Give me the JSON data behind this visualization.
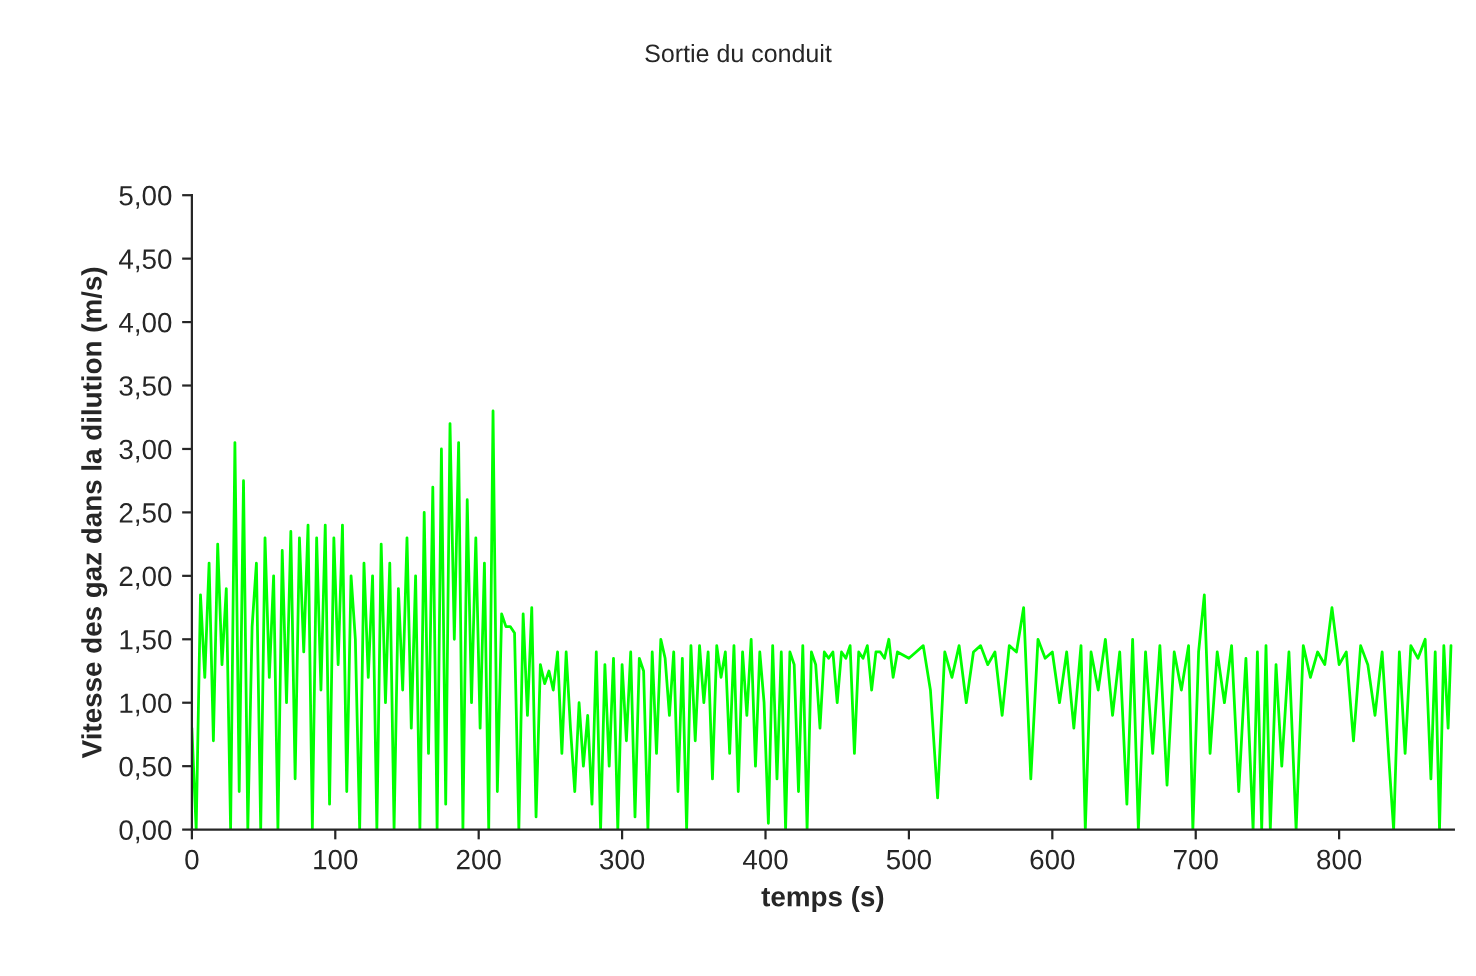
{
  "chart_data": {
    "type": "line",
    "title": "Sortie du conduit",
    "xlabel": "temps (s)",
    "ylabel": "Vitesse des gaz dans la dilution (m/s)",
    "x": [
      0,
      3,
      6,
      9,
      12,
      15,
      18,
      21,
      24,
      27,
      30,
      33,
      36,
      39,
      42,
      45,
      48,
      51,
      54,
      57,
      60,
      63,
      66,
      69,
      72,
      75,
      78,
      81,
      84,
      87,
      90,
      93,
      96,
      99,
      102,
      105,
      108,
      111,
      114,
      117,
      120,
      123,
      126,
      129,
      132,
      135,
      138,
      141,
      144,
      147,
      150,
      153,
      156,
      159,
      162,
      165,
      168,
      171,
      174,
      177,
      180,
      183,
      186,
      189,
      192,
      195,
      198,
      201,
      204,
      207,
      210,
      213,
      216,
      219,
      222,
      225,
      228,
      231,
      234,
      237,
      240,
      243,
      246,
      249,
      252,
      255,
      258,
      261,
      264,
      267,
      270,
      273,
      276,
      279,
      282,
      285,
      288,
      291,
      294,
      297,
      300,
      303,
      306,
      309,
      312,
      315,
      318,
      321,
      324,
      327,
      330,
      333,
      336,
      339,
      342,
      345,
      348,
      351,
      354,
      357,
      360,
      363,
      366,
      369,
      372,
      375,
      378,
      381,
      384,
      387,
      390,
      393,
      396,
      399,
      402,
      405,
      408,
      411,
      414,
      417,
      420,
      423,
      426,
      429,
      432,
      435,
      438,
      441,
      444,
      447,
      450,
      453,
      456,
      459,
      462,
      465,
      468,
      471,
      474,
      477,
      480,
      483,
      486,
      489,
      492,
      500,
      505,
      510,
      515,
      520,
      525,
      530,
      535,
      540,
      545,
      550,
      555,
      560,
      565,
      570,
      575,
      580,
      585,
      590,
      595,
      600,
      605,
      610,
      615,
      620,
      623,
      627,
      632,
      637,
      642,
      647,
      652,
      656,
      660,
      665,
      670,
      675,
      680,
      685,
      690,
      695,
      698,
      702,
      706,
      710,
      715,
      720,
      725,
      730,
      735,
      740,
      743,
      746,
      749,
      752,
      756,
      760,
      765,
      770,
      775,
      780,
      785,
      790,
      795,
      800,
      805,
      810,
      815,
      820,
      825,
      830,
      835,
      838,
      842,
      846,
      850,
      855,
      860,
      864,
      867,
      870,
      873,
      876,
      878
    ],
    "series": [
      {
        "color": "#00ff00",
        "values": [
          0.8,
          0,
          1.85,
          1.2,
          2.1,
          0.7,
          2.25,
          1.3,
          1.9,
          0,
          3.05,
          0.3,
          2.75,
          0,
          1.6,
          2.1,
          0,
          2.3,
          1.2,
          2.0,
          0,
          2.2,
          1.0,
          2.35,
          0.4,
          2.3,
          1.4,
          2.4,
          0,
          2.3,
          1.1,
          2.4,
          0.2,
          2.3,
          1.3,
          2.4,
          0.3,
          2.0,
          1.5,
          0,
          2.1,
          1.2,
          2.0,
          0,
          2.25,
          1.0,
          2.1,
          0,
          1.9,
          1.1,
          2.3,
          0.8,
          2.0,
          0,
          2.5,
          0.6,
          2.7,
          0,
          3.0,
          0.2,
          3.2,
          1.5,
          3.05,
          0,
          2.6,
          1.0,
          2.3,
          0.8,
          2.1,
          0,
          3.3,
          0.3,
          1.7,
          1.6,
          1.6,
          1.55,
          0,
          1.7,
          0.9,
          1.75,
          0.1,
          1.3,
          1.15,
          1.25,
          1.1,
          1.4,
          0.6,
          1.4,
          0.8,
          0.3,
          1.0,
          0.5,
          0.9,
          0.2,
          1.4,
          0,
          1.3,
          0.5,
          1.35,
          0,
          1.3,
          0.7,
          1.4,
          0.1,
          1.35,
          1.25,
          0,
          1.4,
          0.6,
          1.5,
          1.35,
          0.9,
          1.4,
          0.3,
          1.35,
          0,
          1.45,
          0.7,
          1.45,
          1.0,
          1.4,
          0.4,
          1.45,
          1.2,
          1.4,
          0.6,
          1.45,
          0.3,
          1.4,
          0.9,
          1.5,
          0.5,
          1.4,
          1.0,
          0.05,
          1.45,
          0.4,
          1.4,
          0,
          1.4,
          1.3,
          0.3,
          1.45,
          0,
          1.4,
          1.3,
          0.8,
          1.4,
          1.35,
          1.4,
          1.0,
          1.4,
          1.35,
          1.45,
          0.6,
          1.4,
          1.35,
          1.45,
          1.1,
          1.4,
          1.4,
          1.35,
          1.5,
          1.2,
          1.4,
          1.35,
          1.4,
          1.45,
          1.1,
          0.25,
          1.4,
          1.2,
          1.45,
          1.0,
          1.4,
          1.45,
          1.3,
          1.4,
          0.9,
          1.45,
          1.4,
          1.75,
          0.4,
          1.5,
          1.35,
          1.4,
          1.0,
          1.4,
          0.8,
          1.45,
          0,
          1.4,
          1.1,
          1.5,
          0.9,
          1.4,
          0.2,
          1.5,
          0,
          1.4,
          0.6,
          1.45,
          0.35,
          1.4,
          1.1,
          1.45,
          0,
          1.4,
          1.85,
          0.6,
          1.4,
          1.0,
          1.45,
          0.3,
          1.35,
          0,
          1.4,
          0,
          1.45,
          0,
          1.3,
          0.5,
          1.4,
          0,
          1.45,
          1.2,
          1.4,
          1.3,
          1.75,
          1.3,
          1.4,
          0.7,
          1.45,
          1.3,
          0.9,
          1.4,
          0.5,
          0,
          1.4,
          0.6,
          1.45,
          1.35,
          1.5,
          0.4,
          1.4,
          0,
          1.45,
          0.8,
          1.45
        ]
      }
    ],
    "xlim": [
      0,
      880
    ],
    "xticks": [
      0,
      100,
      200,
      300,
      400,
      500,
      600,
      700,
      800
    ],
    "ylim": [
      0,
      5
    ],
    "yticks": [
      {
        "value": 0,
        "label": "0,00"
      },
      {
        "value": 0.5,
        "label": "0,50"
      },
      {
        "value": 1,
        "label": "1,00"
      },
      {
        "value": 1.5,
        "label": "1,50"
      },
      {
        "value": 2,
        "label": "2,00"
      },
      {
        "value": 2.5,
        "label": "2,50"
      },
      {
        "value": 3,
        "label": "3,00"
      },
      {
        "value": 3.5,
        "label": "3,50"
      },
      {
        "value": 4,
        "label": "4,00"
      },
      {
        "value": 4.5,
        "label": "4,50"
      },
      {
        "value": 5,
        "label": "5,00"
      }
    ],
    "marker": "none",
    "line_style": "solid"
  }
}
